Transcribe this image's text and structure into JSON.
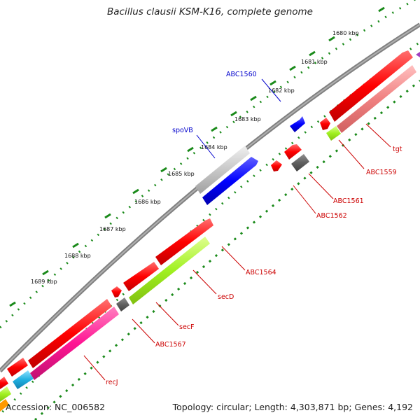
{
  "title": "Bacillus clausii KSM-K16, complete genome",
  "footer": {
    "accession": "Accession: NC_006582",
    "summary": "Topology: circular; Length: 4,303,871 bp; Genes: 4,192"
  },
  "ticks": [
    "1680 kbp",
    "1681 kbp",
    "1682 kbp",
    "1683 kbp",
    "1684 kbp",
    "1685 kbp",
    "1686 kbp",
    "1687 kbp",
    "1688 kbp",
    "1689 kbp"
  ],
  "genes_top": [
    {
      "label": "ABC1560",
      "color": "#0000cc"
    },
    {
      "label": "spoVB",
      "color": "#0000cc"
    }
  ],
  "genes_bottom": [
    {
      "label": "tgt",
      "color": "#cc0000"
    },
    {
      "label": "ABC1559",
      "color": "#cc0000"
    },
    {
      "label": "ABC1561",
      "color": "#cc0000"
    },
    {
      "label": "ABC1562",
      "color": "#cc0000"
    },
    {
      "label": "ABC1564",
      "color": "#cc0000"
    },
    {
      "label": "secD",
      "color": "#cc0000"
    },
    {
      "label": "secF",
      "color": "#cc0000"
    },
    {
      "label": "ABC1567",
      "color": "#cc0000"
    },
    {
      "label": "recJ",
      "color": "#cc0000"
    }
  ],
  "colors": {
    "backbone": "#808080",
    "tick": "#1a8a1a",
    "cds_red": "#ff0000",
    "cog_salmon": "#f08080",
    "cog_lime": "#a0f020",
    "cog_blue": "#0000ff",
    "cog_grey": "#c0c0c0",
    "cog_dark": "#606060",
    "cog_pink": "#ff1493",
    "cog_cyan": "#20b0e0"
  }
}
